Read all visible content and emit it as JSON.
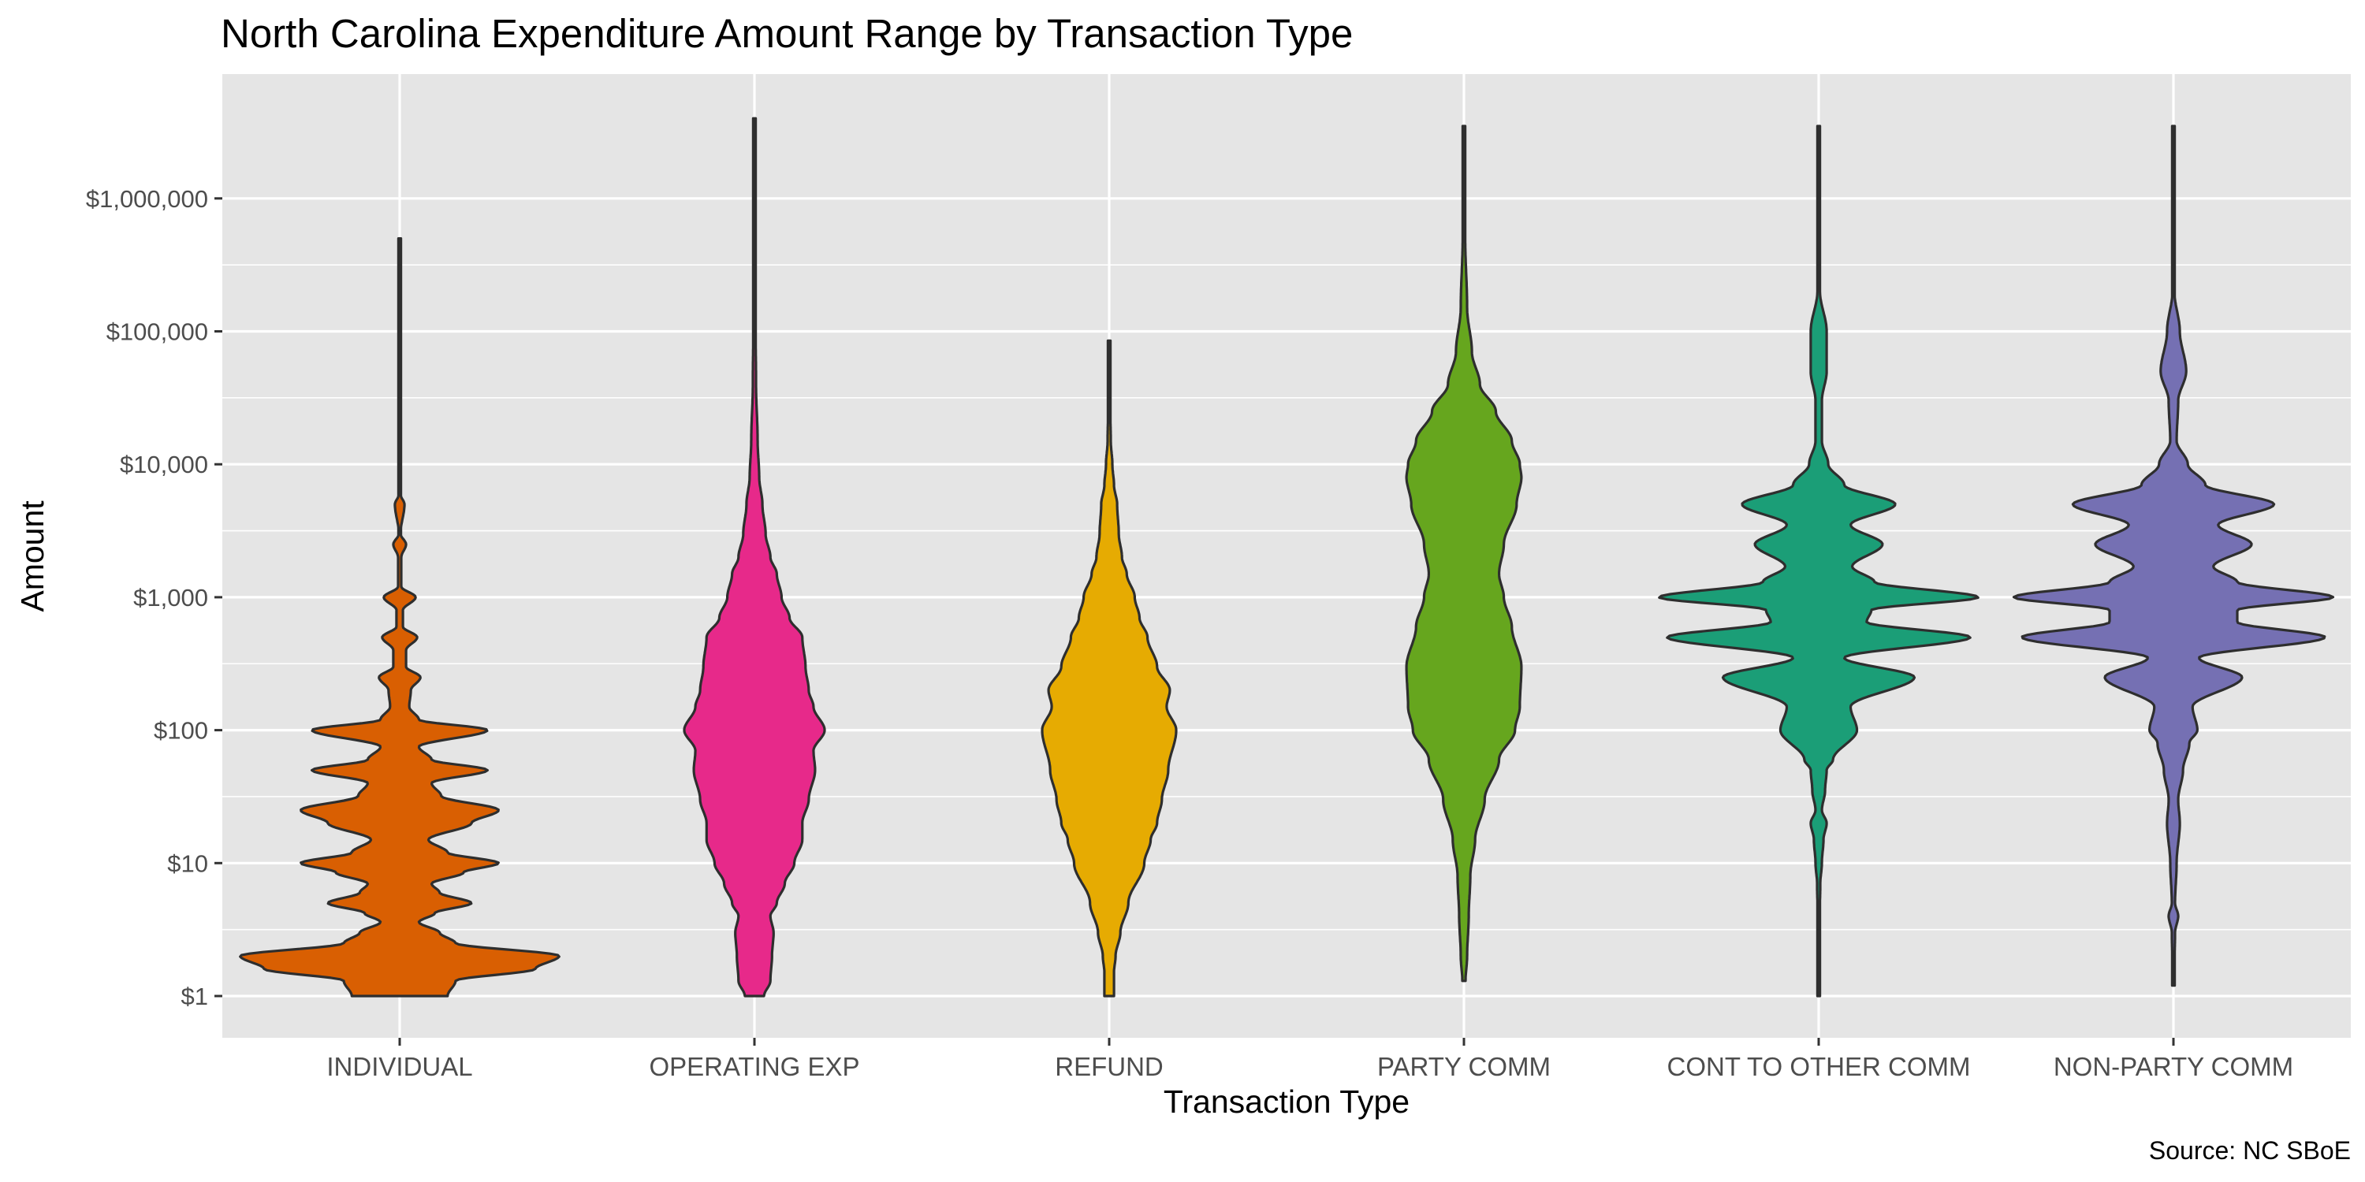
{
  "chart_data": {
    "type": "violin",
    "title": "North Carolina Expenditure Amount Range by Transaction Type",
    "xlabel": "Transaction Type",
    "ylabel": "Amount",
    "caption": "Source: NC SBoE",
    "y_scale": "log10",
    "ylim": [
      0.68,
      6000000
    ],
    "y_ticks": [
      1,
      10,
      100,
      1000,
      10000,
      100000,
      1000000
    ],
    "y_tick_labels": [
      "$1",
      "$10",
      "$100",
      "$1,000",
      "$10,000",
      "$100,000",
      "$1,000,000"
    ],
    "grid": true,
    "background_color": "#e5e5e5",
    "grid_color": "#ffffff",
    "outline_color": "#2e2e2e",
    "categories": [
      "INDIVIDUAL",
      "OPERATING EXP",
      "REFUND",
      "PARTY COMM",
      "CONT TO OTHER COMM",
      "NON-PARTY COMM"
    ],
    "series": [
      {
        "name": "INDIVIDUAL",
        "color": "#d95f02",
        "min": 1,
        "max": 500000,
        "profile": [
          [
            1,
            0.3
          ],
          [
            1.3,
            0.35
          ],
          [
            1.6,
            0.85
          ],
          [
            2,
            1.0
          ],
          [
            2.5,
            0.35
          ],
          [
            3,
            0.25
          ],
          [
            3.6,
            0.12
          ],
          [
            4.2,
            0.22
          ],
          [
            5,
            0.45
          ],
          [
            6,
            0.25
          ],
          [
            7,
            0.2
          ],
          [
            8.5,
            0.4
          ],
          [
            10,
            0.62
          ],
          [
            12,
            0.3
          ],
          [
            15,
            0.18
          ],
          [
            20,
            0.45
          ],
          [
            25,
            0.62
          ],
          [
            32,
            0.26
          ],
          [
            40,
            0.2
          ],
          [
            50,
            0.55
          ],
          [
            60,
            0.2
          ],
          [
            75,
            0.12
          ],
          [
            100,
            0.55
          ],
          [
            120,
            0.12
          ],
          [
            150,
            0.06
          ],
          [
            200,
            0.07
          ],
          [
            250,
            0.13
          ],
          [
            300,
            0.04
          ],
          [
            400,
            0.04
          ],
          [
            500,
            0.11
          ],
          [
            600,
            0.02
          ],
          [
            800,
            0.02
          ],
          [
            1000,
            0.1
          ],
          [
            1200,
            0.01
          ],
          [
            2000,
            0.01
          ],
          [
            2500,
            0.04
          ],
          [
            3000,
            0.005
          ],
          [
            5000,
            0.03
          ],
          [
            6000,
            0.003
          ],
          [
            20000,
            0.002
          ],
          [
            500000,
            0.002
          ]
        ]
      },
      {
        "name": "OPERATING EXP",
        "color": "#e7298a",
        "min": 1,
        "max": 4000000,
        "profile": [
          [
            1,
            0.06
          ],
          [
            1.3,
            0.1
          ],
          [
            2,
            0.11
          ],
          [
            3,
            0.12
          ],
          [
            4,
            0.1
          ],
          [
            5,
            0.14
          ],
          [
            7,
            0.19
          ],
          [
            10,
            0.25
          ],
          [
            15,
            0.3
          ],
          [
            20,
            0.3
          ],
          [
            30,
            0.34
          ],
          [
            50,
            0.38
          ],
          [
            70,
            0.37
          ],
          [
            100,
            0.44
          ],
          [
            150,
            0.37
          ],
          [
            200,
            0.34
          ],
          [
            300,
            0.32
          ],
          [
            500,
            0.3
          ],
          [
            700,
            0.22
          ],
          [
            1000,
            0.17
          ],
          [
            1500,
            0.14
          ],
          [
            2000,
            0.1
          ],
          [
            3000,
            0.07
          ],
          [
            5000,
            0.05
          ],
          [
            8000,
            0.03
          ],
          [
            15000,
            0.02
          ],
          [
            40000,
            0.01
          ],
          [
            200000,
            0.004
          ],
          [
            4000000,
            0.002
          ]
        ]
      },
      {
        "name": "REFUND",
        "color": "#e6ab02",
        "min": 1,
        "max": 85000,
        "profile": [
          [
            1,
            0.03
          ],
          [
            1.5,
            0.03
          ],
          [
            2,
            0.04
          ],
          [
            3,
            0.07
          ],
          [
            5,
            0.12
          ],
          [
            10,
            0.22
          ],
          [
            15,
            0.26
          ],
          [
            20,
            0.3
          ],
          [
            30,
            0.33
          ],
          [
            50,
            0.37
          ],
          [
            100,
            0.42
          ],
          [
            150,
            0.36
          ],
          [
            200,
            0.38
          ],
          [
            300,
            0.3
          ],
          [
            500,
            0.24
          ],
          [
            700,
            0.19
          ],
          [
            1000,
            0.16
          ],
          [
            1500,
            0.11
          ],
          [
            2000,
            0.08
          ],
          [
            3000,
            0.06
          ],
          [
            5000,
            0.05
          ],
          [
            7000,
            0.03
          ],
          [
            10000,
            0.02
          ],
          [
            15000,
            0.01
          ],
          [
            30000,
            0.005
          ],
          [
            85000,
            0.002
          ]
        ]
      },
      {
        "name": "PARTY COMM",
        "color": "#66a61e",
        "min": 1.3,
        "max": 3500000,
        "profile": [
          [
            1.3,
            0.01
          ],
          [
            2,
            0.02
          ],
          [
            4,
            0.03
          ],
          [
            8,
            0.04
          ],
          [
            15,
            0.07
          ],
          [
            30,
            0.13
          ],
          [
            60,
            0.22
          ],
          [
            100,
            0.32
          ],
          [
            150,
            0.35
          ],
          [
            300,
            0.36
          ],
          [
            600,
            0.3
          ],
          [
            1000,
            0.25
          ],
          [
            1500,
            0.22
          ],
          [
            2500,
            0.25
          ],
          [
            5000,
            0.33
          ],
          [
            8000,
            0.36
          ],
          [
            10000,
            0.35
          ],
          [
            15000,
            0.3
          ],
          [
            25000,
            0.2
          ],
          [
            40000,
            0.1
          ],
          [
            70000,
            0.05
          ],
          [
            150000,
            0.02
          ],
          [
            500000,
            0.008
          ],
          [
            3500000,
            0.002
          ]
        ]
      },
      {
        "name": "CONT TO OTHER COMM",
        "color": "#1b9e77",
        "min": 1,
        "max": 3500000,
        "profile": [
          [
            1,
            0.002
          ],
          [
            3,
            0.003
          ],
          [
            7,
            0.01
          ],
          [
            10,
            0.02
          ],
          [
            15,
            0.03
          ],
          [
            20,
            0.05
          ],
          [
            25,
            0.02
          ],
          [
            35,
            0.04
          ],
          [
            50,
            0.05
          ],
          [
            60,
            0.09
          ],
          [
            100,
            0.24
          ],
          [
            150,
            0.2
          ],
          [
            250,
            0.6
          ],
          [
            350,
            0.16
          ],
          [
            500,
            0.95
          ],
          [
            650,
            0.3
          ],
          [
            800,
            0.33
          ],
          [
            1000,
            1.0
          ],
          [
            1300,
            0.35
          ],
          [
            1700,
            0.21
          ],
          [
            2500,
            0.4
          ],
          [
            3500,
            0.2
          ],
          [
            5000,
            0.48
          ],
          [
            7000,
            0.16
          ],
          [
            10000,
            0.06
          ],
          [
            15000,
            0.02
          ],
          [
            30000,
            0.02
          ],
          [
            50000,
            0.05
          ],
          [
            100000,
            0.05
          ],
          [
            200000,
            0.008
          ],
          [
            1000000,
            0.003
          ],
          [
            3500000,
            0.002
          ]
        ]
      },
      {
        "name": "NON-PARTY COMM",
        "color": "#7570b3",
        "min": 1.2,
        "max": 3500000,
        "profile": [
          [
            1.2,
            0.003
          ],
          [
            3,
            0.01
          ],
          [
            4,
            0.03
          ],
          [
            5,
            0.01
          ],
          [
            10,
            0.02
          ],
          [
            20,
            0.04
          ],
          [
            30,
            0.03
          ],
          [
            50,
            0.06
          ],
          [
            80,
            0.1
          ],
          [
            100,
            0.15
          ],
          [
            150,
            0.12
          ],
          [
            250,
            0.43
          ],
          [
            350,
            0.16
          ],
          [
            500,
            0.95
          ],
          [
            650,
            0.4
          ],
          [
            800,
            0.4
          ],
          [
            1000,
            1.0
          ],
          [
            1300,
            0.4
          ],
          [
            1700,
            0.25
          ],
          [
            2500,
            0.49
          ],
          [
            3500,
            0.28
          ],
          [
            5000,
            0.63
          ],
          [
            7000,
            0.2
          ],
          [
            10000,
            0.09
          ],
          [
            15000,
            0.02
          ],
          [
            30000,
            0.03
          ],
          [
            50000,
            0.08
          ],
          [
            100000,
            0.04
          ],
          [
            200000,
            0.006
          ],
          [
            3500000,
            0.002
          ]
        ]
      }
    ]
  }
}
